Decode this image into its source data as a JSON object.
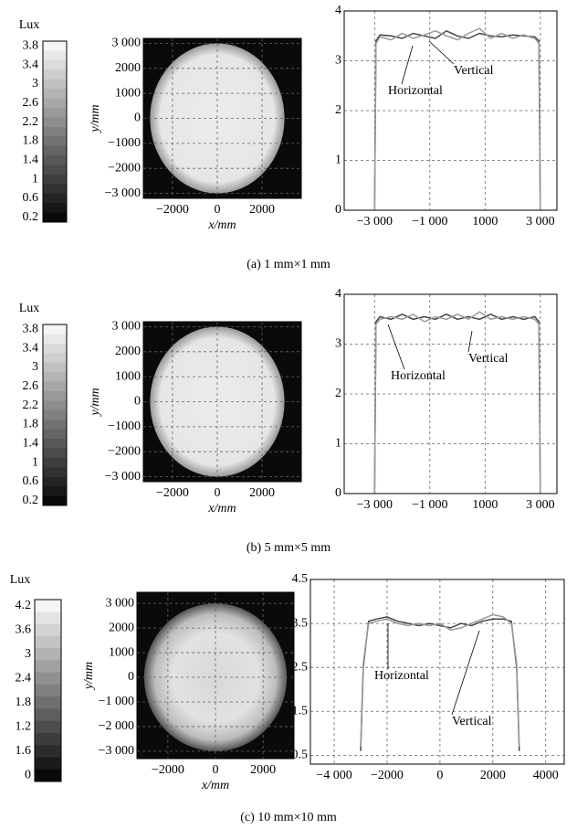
{
  "captions": [
    "(a) 1 mm×1 mm",
    "(b) 5 mm×5 mm",
    "(c) 10 mm×10 mm"
  ],
  "chart_data": [
    {
      "type": "heatmap",
      "colorbar_title": "Lux",
      "colorbar_labels": [
        3.8,
        3.4,
        3.0,
        2.6,
        2.2,
        1.8,
        1.4,
        1.0,
        0.6,
        0.2
      ],
      "x_label": "x/mm",
      "y_label": "y/mm",
      "xlim": [
        -3300,
        3750
      ],
      "ylim": [
        -3200,
        3200
      ],
      "xticks": [
        {
          "value": -2000,
          "label": "−2000"
        },
        0,
        2000
      ],
      "yticks": [
        {
          "value": 3000,
          "label": "3 000"
        },
        2000,
        1000,
        0,
        {
          "value": -1000,
          "label": "−1000"
        },
        {
          "value": -2000,
          "label": "−2000"
        },
        {
          "value": -3000,
          "label": "−3 000"
        }
      ],
      "grid": true
    },
    {
      "type": "line",
      "xlim": [
        -4100,
        3600
      ],
      "ylim": [
        0,
        4
      ],
      "xticks": [
        {
          "value": -3000,
          "label": "−3 000"
        },
        {
          "value": -1000,
          "label": "−1 000"
        },
        1000,
        {
          "value": 3000,
          "label": "3 000"
        }
      ],
      "yticks": [
        0,
        1,
        2,
        3,
        4
      ],
      "grid": true,
      "x": [
        -3000,
        -2950,
        -2800,
        -2400,
        -2000,
        -1600,
        -1200,
        -800,
        -400,
        0,
        400,
        800,
        1200,
        1600,
        2000,
        2400,
        2800,
        2950,
        3000
      ],
      "series": [
        {
          "name": "Horizontal",
          "color": "#444444",
          "values": [
            0,
            3.4,
            3.52,
            3.5,
            3.45,
            3.55,
            3.5,
            3.45,
            3.6,
            3.5,
            3.45,
            3.55,
            3.5,
            3.48,
            3.52,
            3.5,
            3.48,
            3.4,
            0
          ]
        },
        {
          "name": "Vertical",
          "color": "#999999",
          "values": [
            0,
            3.35,
            3.48,
            3.42,
            3.55,
            3.45,
            3.52,
            3.6,
            3.5,
            3.42,
            3.55,
            3.65,
            3.45,
            3.55,
            3.45,
            3.52,
            3.45,
            3.35,
            0
          ]
        }
      ]
    },
    {
      "type": "heatmap",
      "colorbar_title": "Lux",
      "colorbar_labels": [
        3.8,
        3.4,
        3.0,
        2.6,
        2.2,
        1.8,
        1.4,
        1.0,
        0.6,
        0.2
      ],
      "x_label": "x/mm",
      "y_label": "y/mm",
      "xlim": [
        -3300,
        3750
      ],
      "ylim": [
        -3200,
        3200
      ],
      "xticks": [
        {
          "value": -2000,
          "label": "−2000"
        },
        0,
        2000
      ],
      "yticks": [
        {
          "value": 3000,
          "label": "3 000"
        },
        2000,
        1000,
        0,
        {
          "value": -1000,
          "label": "−1000"
        },
        {
          "value": -2000,
          "label": "−2000"
        },
        {
          "value": -3000,
          "label": "−3 000"
        }
      ],
      "grid": true
    },
    {
      "type": "line",
      "xlim": [
        -4100,
        3600
      ],
      "ylim": [
        0,
        4
      ],
      "xticks": [
        {
          "value": -3000,
          "label": "−3 000"
        },
        {
          "value": -1000,
          "label": "−1 000"
        },
        1000,
        {
          "value": 3000,
          "label": "3 000"
        }
      ],
      "yticks": [
        0,
        1,
        2,
        3,
        4
      ],
      "grid": true,
      "x": [
        -3000,
        -2950,
        -2800,
        -2400,
        -2000,
        -1600,
        -1200,
        -800,
        -400,
        0,
        400,
        800,
        1200,
        1600,
        2000,
        2400,
        2800,
        2950,
        3000
      ],
      "series": [
        {
          "name": "Horizontal",
          "color": "#444444",
          "values": [
            0,
            3.45,
            3.55,
            3.5,
            3.6,
            3.5,
            3.55,
            3.5,
            3.6,
            3.5,
            3.55,
            3.5,
            3.6,
            3.5,
            3.55,
            3.5,
            3.55,
            3.45,
            0
          ]
        },
        {
          "name": "Vertical",
          "color": "#999999",
          "values": [
            0,
            3.4,
            3.5,
            3.55,
            3.5,
            3.6,
            3.45,
            3.55,
            3.5,
            3.6,
            3.5,
            3.65,
            3.5,
            3.55,
            3.5,
            3.55,
            3.5,
            3.4,
            0
          ]
        }
      ]
    },
    {
      "type": "heatmap",
      "colorbar_title": "Lux",
      "colorbar_labels": [
        4.2,
        3.6,
        3.0,
        2.4,
        1.8,
        1.2,
        1.6,
        0
      ],
      "x_label": "x/mm",
      "y_label": "y/mm",
      "xlim": [
        -3300,
        3300
      ],
      "ylim": [
        -3300,
        3450
      ],
      "xticks": [
        {
          "value": -2000,
          "label": "−2000"
        },
        0,
        2000
      ],
      "yticks": [
        {
          "value": 3000,
          "label": "3 000"
        },
        2000,
        1000,
        0,
        {
          "value": -1000,
          "label": "−1 000"
        },
        {
          "value": -2000,
          "label": "−2 000"
        },
        {
          "value": -3000,
          "label": "−3 000"
        }
      ],
      "grid": true
    },
    {
      "type": "line",
      "xlim": [
        -4900,
        4700
      ],
      "ylim": [
        0.3,
        4.5
      ],
      "xticks": [
        {
          "value": -4000,
          "label": "−4 000"
        },
        {
          "value": -2000,
          "label": "−2000"
        },
        0,
        2000,
        4000
      ],
      "yticks": [
        0.5,
        1.5,
        2.5,
        3.5,
        4.5
      ],
      "grid": true,
      "x": [
        -3000,
        -2900,
        -2700,
        -2400,
        -2000,
        -1600,
        -1200,
        -800,
        -400,
        0,
        400,
        800,
        1200,
        1600,
        2000,
        2400,
        2700,
        2900,
        3000
      ],
      "series": [
        {
          "name": "Horizontal",
          "color": "#444444",
          "values": [
            0.6,
            2.5,
            3.55,
            3.6,
            3.65,
            3.55,
            3.5,
            3.45,
            3.5,
            3.45,
            3.4,
            3.5,
            3.45,
            3.55,
            3.6,
            3.6,
            3.55,
            2.5,
            0.6
          ]
        },
        {
          "name": "Vertical",
          "color": "#999999",
          "values": [
            0.7,
            2.6,
            3.5,
            3.55,
            3.6,
            3.5,
            3.45,
            3.5,
            3.45,
            3.5,
            3.35,
            3.4,
            3.5,
            3.6,
            3.7,
            3.65,
            3.5,
            2.6,
            0.7
          ]
        }
      ]
    }
  ]
}
